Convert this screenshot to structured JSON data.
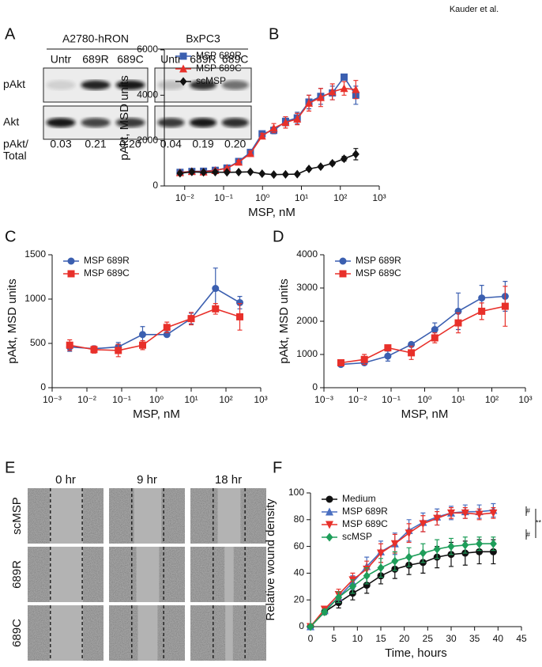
{
  "header": {
    "credit": "Kauder et al."
  },
  "blot": {
    "panel": "A",
    "groups": [
      {
        "name": "A2780-hRON",
        "lanes": [
          "Untr",
          "689R",
          "689C"
        ]
      },
      {
        "name": "BxPC3",
        "lanes": [
          "Untr",
          "689R",
          "689C"
        ]
      }
    ],
    "rows": [
      "pAkt",
      "Akt"
    ],
    "ratio_label": [
      "pAkt/",
      "Total"
    ],
    "ratios": [
      "0.03",
      "0.21",
      "0.20",
      "0.04",
      "0.19",
      "0.20"
    ]
  },
  "wound": {
    "panel": "E",
    "times": [
      "0 hr",
      "9 hr",
      "18 hr"
    ],
    "conditions": [
      "scMSP",
      "689R",
      "689C"
    ]
  },
  "chart_data": [
    {
      "type": "line",
      "panel": "B",
      "xlog": true,
      "legend": "top-left",
      "x_label": "MSP, nM",
      "y_label": "pAkt, MSD units",
      "x": [
        0.0076,
        0.0153,
        0.0305,
        0.061,
        0.122,
        0.244,
        0.488,
        0.977,
        1.95,
        3.91,
        7.81,
        15.6,
        31.3,
        62.5,
        125,
        250
      ],
      "xlim": [
        0.003,
        1000
      ],
      "xticks": [
        {
          "value": 0.01,
          "label": "10⁻²"
        },
        {
          "value": 0.1,
          "label": "10⁻¹"
        },
        {
          "value": 1,
          "label": "10⁰"
        },
        {
          "value": 10,
          "label": "10¹"
        },
        {
          "value": 100,
          "label": "10²"
        },
        {
          "value": 1000,
          "label": "10³"
        }
      ],
      "ylim": [
        0,
        6000
      ],
      "yticks": [
        0,
        2000,
        4000,
        6000
      ],
      "series": [
        {
          "name": "MSP 689R",
          "color": "#3b5fb0",
          "marker": "square",
          "values": [
            600,
            640,
            650,
            690,
            790,
            1080,
            1480,
            2300,
            2450,
            2850,
            3000,
            3700,
            3950,
            4100,
            4800,
            4000
          ],
          "errors": [
            60,
            50,
            60,
            50,
            60,
            80,
            100,
            120,
            150,
            200,
            250,
            300,
            350,
            300,
            100,
            400
          ]
        },
        {
          "name": "MSP 689C",
          "color": "#e8302a",
          "marker": "triangle-up",
          "values": [
            590,
            640,
            620,
            680,
            780,
            1050,
            1430,
            2200,
            2550,
            2800,
            2950,
            3650,
            3900,
            4150,
            4300,
            4250
          ],
          "errors": [
            60,
            50,
            60,
            50,
            60,
            80,
            100,
            120,
            200,
            250,
            250,
            350,
            400,
            350,
            300,
            400
          ]
        },
        {
          "name": "scMSP",
          "color": "#111111",
          "marker": "diamond",
          "values": [
            560,
            620,
            600,
            610,
            600,
            610,
            620,
            540,
            500,
            510,
            520,
            750,
            850,
            1000,
            1200,
            1400
          ],
          "errors": [
            40,
            40,
            40,
            40,
            40,
            40,
            40,
            40,
            40,
            40,
            40,
            60,
            60,
            80,
            100,
            250
          ]
        }
      ]
    },
    {
      "type": "line",
      "panel": "C",
      "xlog": true,
      "legend": "top-left",
      "x_label": "MSP, nM",
      "y_label": "pAkt, MSD units",
      "x": [
        0.0032,
        0.016,
        0.08,
        0.4,
        2,
        10,
        50,
        250
      ],
      "xlim": [
        0.001,
        1000
      ],
      "xticks": [
        {
          "value": 0.001,
          "label": "10⁻³"
        },
        {
          "value": 0.01,
          "label": "10⁻²"
        },
        {
          "value": 0.1,
          "label": "10⁻¹"
        },
        {
          "value": 1,
          "label": "10⁰"
        },
        {
          "value": 10,
          "label": "10¹"
        },
        {
          "value": 100,
          "label": "10²"
        },
        {
          "value": 1000,
          "label": "10³"
        }
      ],
      "ylim": [
        0,
        1500
      ],
      "yticks": [
        0,
        500,
        1000,
        1500
      ],
      "series": [
        {
          "name": "MSP 689R",
          "color": "#3b5fb0",
          "marker": "circle",
          "values": [
            460,
            440,
            460,
            600,
            600,
            780,
            1120,
            960
          ],
          "errors": [
            50,
            30,
            50,
            90,
            20,
            60,
            230,
            70
          ]
        },
        {
          "name": "MSP 689C",
          "color": "#e8302a",
          "marker": "square",
          "values": [
            480,
            430,
            420,
            480,
            680,
            780,
            890,
            800
          ],
          "errors": [
            60,
            40,
            70,
            50,
            60,
            70,
            60,
            150
          ]
        }
      ]
    },
    {
      "type": "line",
      "panel": "D",
      "xlog": true,
      "legend": "top-left",
      "x_label": "MSP, nM",
      "y_label": "pAkt, MSD units",
      "x": [
        0.0032,
        0.016,
        0.08,
        0.4,
        2,
        10,
        50,
        250
      ],
      "xlim": [
        0.001,
        1000
      ],
      "xticks": [
        {
          "value": 0.001,
          "label": "10⁻³"
        },
        {
          "value": 0.01,
          "label": "10⁻²"
        },
        {
          "value": 0.1,
          "label": "10⁻¹"
        },
        {
          "value": 1,
          "label": "10⁰"
        },
        {
          "value": 10,
          "label": "10¹"
        },
        {
          "value": 100,
          "label": "10²"
        },
        {
          "value": 1000,
          "label": "10³"
        }
      ],
      "ylim": [
        0,
        4000
      ],
      "yticks": [
        0,
        1000,
        2000,
        3000,
        4000
      ],
      "series": [
        {
          "name": "MSP 689R",
          "color": "#3b5fb0",
          "marker": "circle",
          "values": [
            700,
            750,
            950,
            1300,
            1750,
            2300,
            2700,
            2750
          ],
          "errors": [
            50,
            60,
            150,
            60,
            200,
            550,
            380,
            450
          ]
        },
        {
          "name": "MSP 689C",
          "color": "#e8302a",
          "marker": "square",
          "values": [
            750,
            850,
            1200,
            1050,
            1500,
            1950,
            2300,
            2450
          ],
          "errors": [
            60,
            150,
            80,
            200,
            150,
            300,
            250,
            600
          ]
        }
      ]
    },
    {
      "type": "line",
      "panel": "F",
      "xlog": false,
      "legend": "top-left",
      "x_label": "Time, hours",
      "y_label": "Relative wound density",
      "x": [
        0,
        3,
        6,
        9,
        12,
        15,
        18,
        21,
        24,
        27,
        30,
        33,
        36,
        39
      ],
      "xlim": [
        0,
        45
      ],
      "xticks": [
        0,
        5,
        10,
        15,
        20,
        25,
        30,
        35,
        40,
        45
      ],
      "ylim": [
        0,
        100
      ],
      "yticks": [
        0,
        20,
        40,
        60,
        80,
        100
      ],
      "annotations": [
        "#",
        "#",
        "**"
      ],
      "series": [
        {
          "name": "Medium",
          "color": "#111111",
          "marker": "circle",
          "values": [
            0,
            11,
            18,
            25,
            31,
            38,
            43,
            46,
            48,
            52,
            54,
            55,
            56,
            56
          ],
          "errors": [
            0,
            2,
            4,
            5,
            6,
            6,
            7,
            7,
            8,
            8,
            9,
            9,
            9,
            9
          ]
        },
        {
          "name": "MSP 689R",
          "color": "#4a6fc0",
          "marker": "triangle-up",
          "values": [
            0,
            12,
            22,
            33,
            45,
            56,
            62,
            72,
            78,
            82,
            85,
            86,
            86,
            87
          ],
          "errors": [
            0,
            2,
            4,
            5,
            7,
            8,
            8,
            8,
            7,
            6,
            5,
            5,
            5,
            5
          ]
        },
        {
          "name": "MSP 689C",
          "color": "#e8302a",
          "marker": "triangle-down",
          "values": [
            0,
            13,
            24,
            35,
            43,
            55,
            62,
            70,
            77,
            81,
            85,
            85,
            84,
            85
          ],
          "errors": [
            0,
            2,
            4,
            5,
            6,
            7,
            7,
            7,
            6,
            5,
            4,
            4,
            4,
            4
          ]
        },
        {
          "name": "scMSP",
          "color": "#1e9e5a",
          "marker": "diamond",
          "values": [
            0,
            11,
            22,
            30,
            38,
            44,
            49,
            52,
            55,
            58,
            60,
            61,
            62,
            62
          ],
          "errors": [
            0,
            2,
            4,
            5,
            6,
            7,
            7,
            7,
            7,
            7,
            6,
            6,
            5,
            5
          ]
        }
      ]
    }
  ]
}
